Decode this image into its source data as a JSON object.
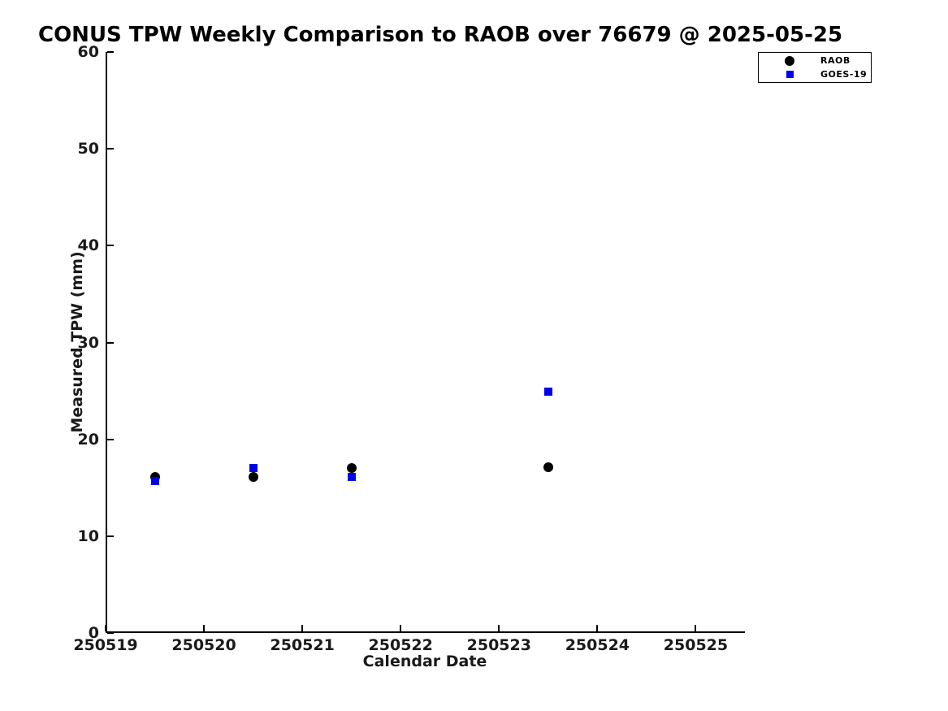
{
  "title": "CONUS TPW Weekly Comparison to RAOB over 76679 @ 2025-05-25",
  "axes": {
    "xlabel": "Calendar Date",
    "ylabel": "Measured TPW (mm)"
  },
  "chart_data": {
    "type": "scatter",
    "title": "CONUS TPW Weekly Comparison to RAOB over 76679 @ 2025-05-25",
    "xlabel": "Calendar Date",
    "ylabel": "Measured TPW (mm)",
    "xlim": [
      250519,
      250525.5
    ],
    "ylim": [
      0,
      60
    ],
    "x_ticks": [
      250519,
      250520,
      250521,
      250522,
      250523,
      250524,
      250525
    ],
    "x_tick_labels": [
      "250519",
      "250520",
      "250521",
      "250522",
      "250523",
      "250524",
      "250525"
    ],
    "y_ticks": [
      0,
      10,
      20,
      30,
      40,
      50,
      60
    ],
    "y_tick_labels": [
      "0",
      "10",
      "20",
      "30",
      "40",
      "50",
      "60"
    ],
    "grid": false,
    "legend_position": "top-right-outside",
    "series": [
      {
        "name": "RAOB",
        "marker": "circle",
        "color": "#000000",
        "marker_size": 12,
        "points": [
          {
            "x": 250519.5,
            "y": 16.1
          },
          {
            "x": 250520.5,
            "y": 16.1
          },
          {
            "x": 250521.5,
            "y": 17.0
          },
          {
            "x": 250523.5,
            "y": 17.1
          }
        ]
      },
      {
        "name": "GOES-19",
        "marker": "square",
        "color": "#0000ee",
        "marker_size": 10,
        "points": [
          {
            "x": 250519.5,
            "y": 15.7
          },
          {
            "x": 250520.5,
            "y": 17.0
          },
          {
            "x": 250521.5,
            "y": 16.1
          },
          {
            "x": 250523.5,
            "y": 24.9
          }
        ]
      }
    ]
  }
}
